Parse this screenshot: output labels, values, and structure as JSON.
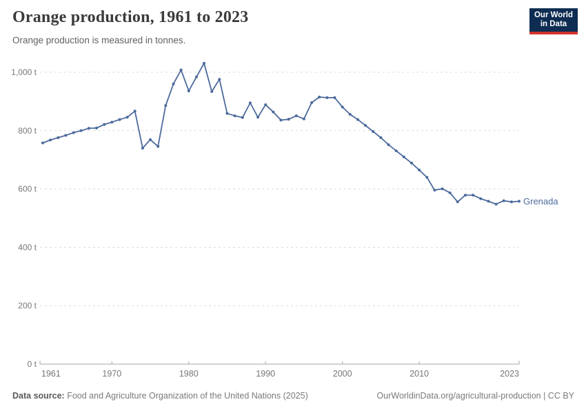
{
  "header": {
    "title": "Orange production, 1961 to 2023",
    "subtitle": "Orange production is measured in tonnes."
  },
  "logo": {
    "line1": "Our World",
    "line2": "in Data",
    "background": "#0f2d52",
    "accent": "#d0342c"
  },
  "chart_data": {
    "type": "line",
    "title": "Orange production, 1961 to 2023",
    "unit": "tonnes",
    "xlabel": "",
    "ylabel": "",
    "xlim": [
      1961,
      2023
    ],
    "ylim": [
      0,
      1050
    ],
    "x_ticks": [
      1961,
      1970,
      1980,
      1990,
      2000,
      2010,
      2023
    ],
    "y_ticks": [
      0,
      200,
      400,
      600,
      800,
      1000
    ],
    "y_tick_suffix": " t",
    "grid": "horizontal-dashed",
    "grid_color": "#dcdcdc",
    "axis_color": "#a6a6a6",
    "tick_label_color": "#767676",
    "legend_position": "end-of-line",
    "series": [
      {
        "name": "Grenada",
        "color": "#4c6a9c",
        "x": [
          1961,
          1962,
          1963,
          1964,
          1965,
          1966,
          1967,
          1968,
          1969,
          1970,
          1971,
          1972,
          1973,
          1974,
          1975,
          1976,
          1977,
          1978,
          1979,
          1980,
          1981,
          1982,
          1983,
          1984,
          1985,
          1986,
          1987,
          1988,
          1989,
          1990,
          1991,
          1992,
          1993,
          1994,
          1995,
          1996,
          1997,
          1998,
          1999,
          2000,
          2001,
          2002,
          2003,
          2004,
          2005,
          2006,
          2007,
          2008,
          2009,
          2010,
          2011,
          2012,
          2013,
          2014,
          2015,
          2016,
          2017,
          2018,
          2019,
          2020,
          2021,
          2022,
          2023
        ],
        "values": [
          758,
          768,
          776,
          784,
          793,
          800,
          808,
          809,
          821,
          829,
          838,
          846,
          867,
          740,
          769,
          746,
          886,
          960,
          1008,
          936,
          984,
          1031,
          934,
          976,
          859,
          851,
          845,
          895,
          846,
          889,
          864,
          836,
          839,
          851,
          840,
          896,
          915,
          913,
          913,
          881,
          856,
          838,
          818,
          797,
          776,
          752,
          731,
          710,
          689,
          665,
          640,
          596,
          601,
          587,
          556,
          579,
          579,
          567,
          558,
          548,
          560,
          556,
          558
        ]
      }
    ]
  },
  "footer": {
    "source_label": "Data source:",
    "source_text": "Food and Agriculture Organization of the United Nations (2025)",
    "note": "OurWorldinData.org/agricultural-production | CC BY"
  }
}
